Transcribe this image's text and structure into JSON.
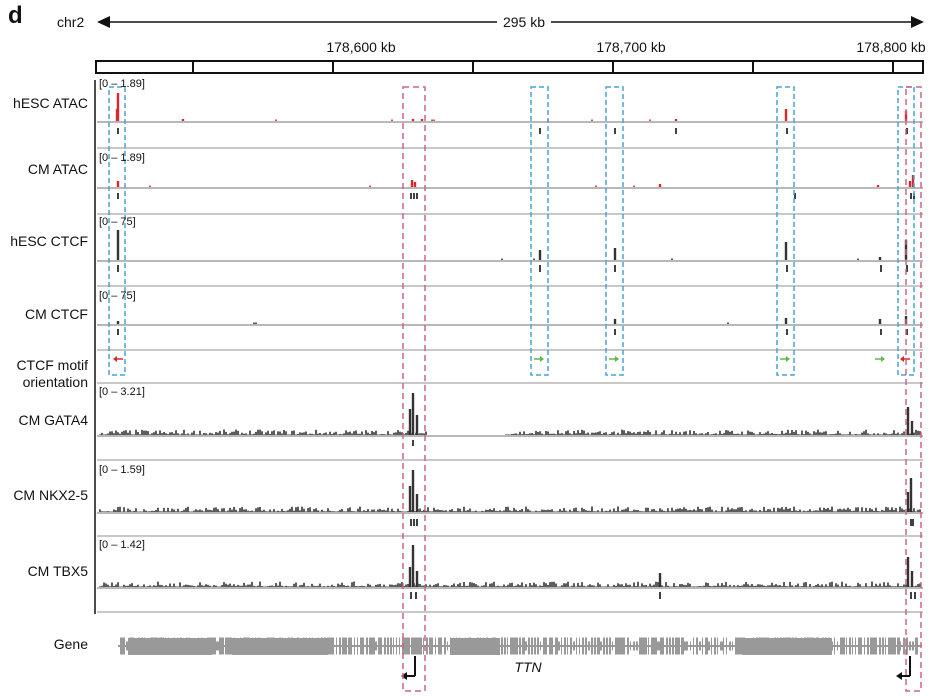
{
  "panel_letter": "d",
  "header": {
    "chromosome": "chr2",
    "span": "295 kb",
    "coordinates": [
      "178,600 kb",
      "178,700 kb",
      "178,800 kb"
    ]
  },
  "tracks": [
    {
      "id": "hesc-atac",
      "label": "hESC ATAC",
      "range": "[0 – 1.89]",
      "color": "#d9262b"
    },
    {
      "id": "cm-atac",
      "label": "CM ATAC",
      "range": "[0 – 1.89]",
      "color": "#d9262b"
    },
    {
      "id": "hesc-ctcf",
      "label": "hESC CTCF",
      "range": "[0 – 75]",
      "color": "#333333"
    },
    {
      "id": "cm-ctcf",
      "label": "CM CTCF",
      "range": "[0 – 75]",
      "color": "#333333"
    },
    {
      "id": "ctcf-motif",
      "label_line1": "CTCF motif",
      "label_line2": "orientation",
      "color_forward": "#5cb848",
      "color_reverse": "#d9262b"
    },
    {
      "id": "cm-gata4",
      "label": "CM GATA4",
      "range": "[0 – 3.21]",
      "color": "#333333"
    },
    {
      "id": "cm-nkx25",
      "label": "CM NKX2-5",
      "range": "[0 – 1.59]",
      "color": "#333333"
    },
    {
      "id": "cm-tbx5",
      "label": "CM TBX5",
      "range": "[0 – 1.42]",
      "color": "#333333"
    }
  ],
  "gene_track": {
    "label": "Gene",
    "gene_name": "TTN",
    "color": "#999999"
  },
  "highlight_colors": {
    "ctcf_sites": "#4aa3d5",
    "enhancers": "#c7668f"
  }
}
